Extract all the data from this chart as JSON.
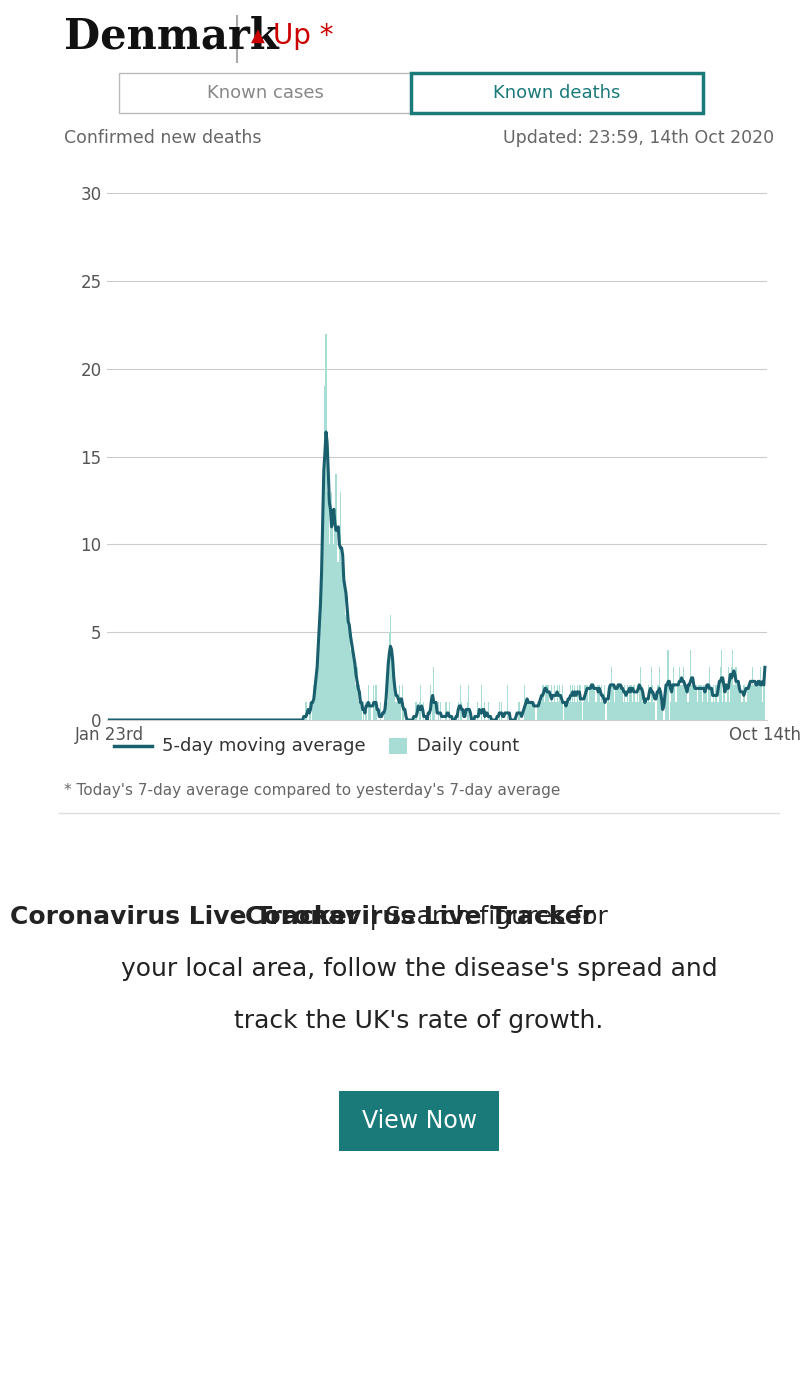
{
  "title_country": "Denmark",
  "title_trend": "Up *",
  "trend_arrow": "▲",
  "tab_left": "Known cases",
  "tab_right": "Known deaths",
  "subtitle_left": "Confirmed new deaths",
  "subtitle_right": "Updated: 23:59, 14th Oct 2020",
  "xlabel_left": "Jan 23rd",
  "xlabel_right": "Oct 14th",
  "yticks": [
    0,
    5,
    10,
    15,
    20,
    25,
    30
  ],
  "ylim": [
    0,
    32
  ],
  "legend_line": "5-day moving average",
  "legend_bar": "Daily count",
  "footnote": "* Today's 7-day average compared to yesterday's 7-day average",
  "promo_line1_bold": "Coronavirus Live Tracker",
  "promo_line1_normal": " | Search figures for",
  "promo_line2": "your local area, follow the disease's spread and",
  "promo_line3": "track the UK's rate of growth.",
  "button_text": "View Now",
  "color_line": "#1a5f6e",
  "color_bar": "#a8ddd6",
  "color_button": "#1a7a7a",
  "color_tab_active_border": "#1a7a7a",
  "color_tab_active_text": "#1a7a7a",
  "color_gray_text": "#888888",
  "color_subtitle": "#666666",
  "color_grid": "#cccccc",
  "color_spine": "#cccccc",
  "bg_color": "#ffffff",
  "daily_counts": [
    0,
    0,
    0,
    0,
    0,
    0,
    0,
    0,
    0,
    0,
    0,
    0,
    0,
    0,
    0,
    0,
    0,
    0,
    0,
    0,
    0,
    0,
    0,
    0,
    0,
    0,
    0,
    0,
    0,
    0,
    0,
    0,
    0,
    0,
    0,
    0,
    0,
    0,
    0,
    0,
    0,
    0,
    0,
    0,
    0,
    0,
    0,
    0,
    0,
    0,
    0,
    0,
    0,
    0,
    0,
    0,
    0,
    0,
    0,
    0,
    0,
    0,
    0,
    0,
    0,
    0,
    0,
    0,
    0,
    0,
    0,
    0,
    0,
    0,
    0,
    0,
    0,
    0,
    0,
    0,
    0,
    0,
    0,
    0,
    0,
    0,
    0,
    0,
    0,
    0,
    0,
    0,
    0,
    0,
    0,
    0,
    0,
    0,
    0,
    0,
    0,
    0,
    0,
    0,
    0,
    0,
    0,
    0,
    0,
    0,
    0,
    0,
    0,
    0,
    0,
    0,
    0,
    0,
    0,
    0,
    0,
    0,
    0,
    0,
    0,
    0,
    0,
    0,
    0,
    0,
    0,
    0,
    0,
    0,
    0,
    0,
    0,
    0,
    0,
    0,
    0,
    0,
    0,
    0,
    0,
    0,
    0,
    0,
    0,
    0,
    0,
    0,
    0,
    0,
    0,
    0,
    0,
    0,
    0,
    0,
    0,
    0,
    0,
    0,
    0,
    0,
    0,
    0,
    0,
    0,
    0,
    0,
    0,
    0,
    0,
    0,
    0,
    1,
    0,
    0,
    1,
    1,
    0,
    1,
    2,
    1,
    2,
    3,
    4,
    5,
    7,
    8,
    9,
    13,
    19,
    22,
    13,
    15,
    10,
    11,
    13,
    11,
    10,
    12,
    14,
    9,
    9,
    10,
    13,
    9,
    8,
    9,
    8,
    6,
    7,
    6,
    5,
    4,
    5,
    4,
    4,
    3,
    2,
    3,
    1,
    2,
    1,
    1,
    0,
    1,
    0,
    1,
    0,
    2,
    1,
    1,
    0,
    0,
    2,
    1,
    2,
    0,
    0,
    0,
    1,
    0,
    0,
    0,
    1,
    1,
    1,
    3,
    5,
    6,
    4,
    3,
    2,
    2,
    1,
    1,
    1,
    2,
    1,
    0,
    2,
    1,
    0,
    0,
    0,
    0,
    0,
    0,
    0,
    0,
    0,
    0,
    1,
    0,
    0,
    1,
    2,
    0,
    0,
    1,
    0,
    0,
    0,
    0,
    0,
    2,
    0,
    1,
    3,
    1,
    0,
    0,
    1,
    0,
    1,
    0,
    0,
    0,
    0,
    1,
    0,
    0,
    1,
    0,
    0,
    0,
    0,
    0,
    0,
    0,
    1,
    0,
    2,
    1,
    0,
    0,
    0,
    0,
    1,
    2,
    0,
    0,
    0,
    0,
    0,
    0,
    0,
    1,
    0,
    0,
    0,
    2,
    0,
    0,
    1,
    0,
    0,
    1,
    0,
    0,
    0,
    0,
    0,
    0,
    0,
    0,
    0,
    1,
    0,
    1,
    0,
    0,
    0,
    0,
    2,
    0,
    0,
    0,
    0,
    0,
    0,
    0,
    0,
    0,
    1,
    1,
    0,
    0,
    0,
    0,
    2,
    1,
    1,
    1,
    1,
    1,
    1,
    1,
    1,
    1,
    0,
    1,
    1,
    1,
    1,
    1,
    2,
    2,
    1,
    2,
    2,
    2,
    1,
    1,
    2,
    1,
    1,
    2,
    1,
    2,
    1,
    2,
    1,
    1,
    2,
    0,
    1,
    1,
    1,
    1,
    1,
    2,
    1,
    2,
    1,
    2,
    1,
    2,
    1,
    2,
    2,
    1,
    0,
    1,
    2,
    2,
    2,
    1,
    2,
    2,
    2,
    2,
    2,
    2,
    1,
    2,
    2,
    2,
    1,
    2,
    1,
    1,
    2,
    0,
    1,
    2,
    1,
    2,
    3,
    2,
    2,
    1,
    2,
    2,
    2,
    2,
    2,
    2,
    2,
    1,
    2,
    1,
    2,
    1,
    2,
    2,
    2,
    1,
    2,
    2,
    1,
    2,
    1,
    2,
    3,
    2,
    1,
    1,
    1,
    1,
    1,
    2,
    1,
    1,
    3,
    2,
    1,
    1,
    0,
    2,
    2,
    3,
    1,
    1,
    1,
    0,
    0,
    2,
    4,
    4,
    0,
    1,
    2,
    2,
    3,
    2,
    1,
    2,
    2,
    3,
    2,
    2,
    2,
    3,
    2,
    2,
    1,
    1,
    2,
    4,
    2,
    2,
    2,
    2,
    2,
    1,
    2,
    2,
    2,
    2,
    1,
    2,
    2,
    2,
    1,
    2,
    3,
    2,
    1,
    1,
    2,
    1,
    2,
    1,
    1,
    2,
    3,
    4,
    1,
    2,
    2,
    1,
    2,
    3,
    1,
    2,
    3,
    4,
    2,
    2,
    3,
    2,
    2,
    2,
    2,
    1,
    1,
    2,
    2,
    1,
    2,
    2,
    2,
    2,
    2,
    3,
    2,
    2,
    2,
    2,
    2,
    2,
    3,
    2,
    1,
    2,
    3
  ]
}
